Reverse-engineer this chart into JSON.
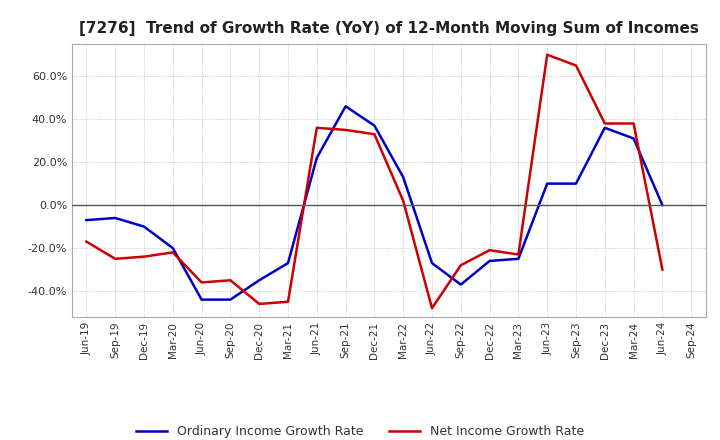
{
  "title": "[7276]  Trend of Growth Rate (YoY) of 12-Month Moving Sum of Incomes",
  "title_fontsize": 11,
  "ylim": [
    -52,
    75
  ],
  "yticks": [
    -40,
    -20,
    0,
    20,
    40,
    60
  ],
  "background_color": "#ffffff",
  "grid_color": "#aaaaaa",
  "ordinary_color": "#0000cc",
  "net_color": "#cc0000",
  "legend_ordinary": "Ordinary Income Growth Rate",
  "legend_net": "Net Income Growth Rate",
  "dates": [
    "Jun-19",
    "Sep-19",
    "Dec-19",
    "Mar-20",
    "Jun-20",
    "Sep-20",
    "Dec-20",
    "Mar-21",
    "Jun-21",
    "Sep-21",
    "Dec-21",
    "Mar-22",
    "Jun-22",
    "Sep-22",
    "Dec-22",
    "Mar-23",
    "Jun-23",
    "Sep-23",
    "Dec-23",
    "Mar-24",
    "Jun-24",
    "Sep-24"
  ],
  "ordinary_income": [
    -7,
    -6,
    -10,
    -20,
    -44,
    -44,
    -35,
    -27,
    22,
    46,
    37,
    13,
    -27,
    -37,
    -26,
    -25,
    10,
    10,
    36,
    31,
    0,
    null
  ],
  "net_income": [
    -17,
    -25,
    -24,
    -22,
    -36,
    -35,
    -46,
    -45,
    36,
    35,
    33,
    2,
    -48,
    -28,
    -21,
    -23,
    70,
    65,
    38,
    38,
    -30,
    null
  ]
}
